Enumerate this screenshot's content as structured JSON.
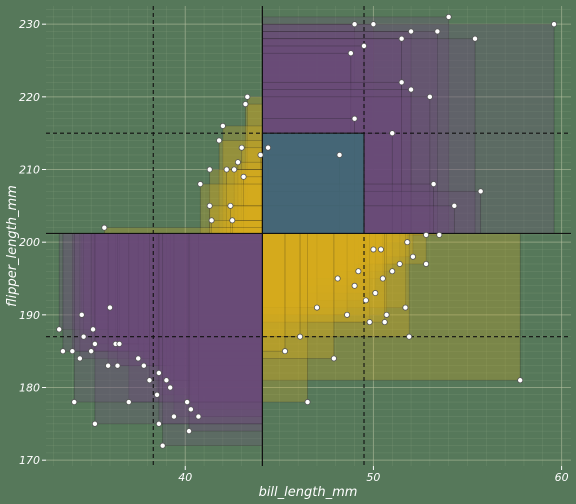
{
  "chart_data": {
    "type": "scatter",
    "title": "",
    "xlabel": "bill_length_mm",
    "ylabel": "flipper_length_mm",
    "xlim": [
      32.6,
      60.5
    ],
    "ylim": [
      169.2,
      232.5
    ],
    "x_ticks": [
      40,
      50,
      60
    ],
    "y_ticks": [
      170,
      180,
      190,
      200,
      210,
      220,
      230
    ],
    "grid": true,
    "legend": "none",
    "colors": {
      "background": "#56785a",
      "grid_major": "#b9c2a4",
      "purple": "#6b4a7a",
      "yellow": "#d9ae1e",
      "teal": "#3f6b76",
      "point_fill": "#ffffff",
      "point_stroke": "#555555"
    },
    "reference_lines": {
      "x_median": 44.1,
      "y_median": 201.2,
      "x_quartiles": [
        38.3,
        49.5
      ],
      "y_quartiles": [
        187,
        215
      ]
    },
    "center_box": {
      "x0": 44.1,
      "x1": 49.5,
      "y0": 201.2,
      "y1": 215
    },
    "points": [
      [
        54,
        231
      ],
      [
        59.6,
        230
      ],
      [
        49,
        230
      ],
      [
        50,
        230
      ],
      [
        52,
        229
      ],
      [
        53.4,
        229
      ],
      [
        55.4,
        228
      ],
      [
        51.5,
        228
      ],
      [
        49.5,
        227
      ],
      [
        48.8,
        226
      ],
      [
        51.5,
        222
      ],
      [
        52,
        221
      ],
      [
        53,
        220
      ],
      [
        43.3,
        220
      ],
      [
        43.2,
        219
      ],
      [
        49,
        217
      ],
      [
        42,
        216
      ],
      [
        51,
        215
      ],
      [
        41.8,
        214
      ],
      [
        43,
        213
      ],
      [
        44.4,
        213
      ],
      [
        48.2,
        212
      ],
      [
        44,
        212
      ],
      [
        42.8,
        211
      ],
      [
        42.6,
        210
      ],
      [
        41.3,
        210
      ],
      [
        42.2,
        210
      ],
      [
        43.1,
        209
      ],
      [
        40.8,
        208
      ],
      [
        41.3,
        205
      ],
      [
        42.4,
        205
      ],
      [
        55.7,
        207
      ],
      [
        53.2,
        208
      ],
      [
        54.3,
        205
      ],
      [
        52.8,
        201
      ],
      [
        41.4,
        203
      ],
      [
        42.5,
        203
      ],
      [
        53.5,
        201
      ],
      [
        51.8,
        200
      ],
      [
        50,
        199
      ],
      [
        50.4,
        199
      ],
      [
        52.1,
        198
      ],
      [
        51.4,
        197
      ],
      [
        52.8,
        197
      ],
      [
        49.2,
        196
      ],
      [
        51,
        196
      ],
      [
        50.5,
        195
      ],
      [
        48.1,
        195
      ],
      [
        49,
        194
      ],
      [
        50.1,
        193
      ],
      [
        49.6,
        192
      ],
      [
        51.7,
        191
      ],
      [
        50.7,
        190
      ],
      [
        49.8,
        189
      ],
      [
        48.6,
        190
      ],
      [
        47,
        191
      ],
      [
        51.9,
        187
      ],
      [
        50.6,
        189
      ],
      [
        57.8,
        181
      ],
      [
        46.5,
        178
      ],
      [
        47.9,
        184
      ],
      [
        46.1,
        187
      ],
      [
        45.3,
        185
      ],
      [
        35.7,
        202
      ],
      [
        36,
        191
      ],
      [
        34.5,
        190
      ],
      [
        33.3,
        188
      ],
      [
        34,
        185
      ],
      [
        35.1,
        188
      ],
      [
        34.6,
        187
      ],
      [
        35.2,
        186
      ],
      [
        36.3,
        186
      ],
      [
        34.4,
        184
      ],
      [
        33.5,
        185
      ],
      [
        36.5,
        186
      ],
      [
        35,
        185
      ],
      [
        37.8,
        183
      ],
      [
        38.6,
        182
      ],
      [
        37.5,
        184
      ],
      [
        36.4,
        183
      ],
      [
        35.9,
        183
      ],
      [
        39,
        181
      ],
      [
        39.2,
        180
      ],
      [
        38.5,
        179
      ],
      [
        37,
        178
      ],
      [
        38.1,
        181
      ],
      [
        40.3,
        177
      ],
      [
        40.1,
        178
      ],
      [
        39.4,
        176
      ],
      [
        40.7,
        176
      ],
      [
        35.2,
        175
      ],
      [
        34.1,
        178
      ],
      [
        38.8,
        172
      ],
      [
        40.2,
        174
      ],
      [
        38.6,
        175
      ]
    ]
  }
}
